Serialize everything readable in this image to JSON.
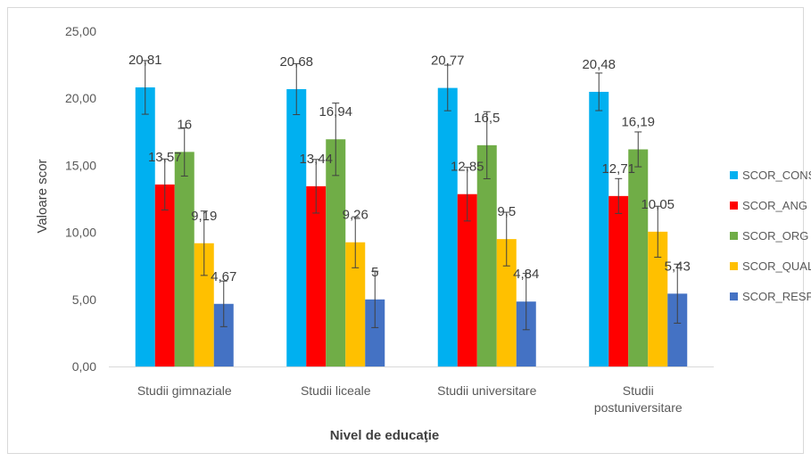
{
  "chart_data": {
    "type": "bar",
    "categories": [
      [
        "Studii gimnaziale"
      ],
      [
        "Studii liceale"
      ],
      [
        "Studii universitare"
      ],
      [
        "Studii",
        "postuniversitare"
      ]
    ],
    "series": [
      {
        "name": "SCOR_CONS",
        "color": "#00B0F0",
        "values": [
          20.81,
          20.68,
          20.77,
          20.48
        ],
        "labels": [
          "20,81",
          "20,68",
          "20,77",
          "20,48"
        ],
        "errors": [
          2.0,
          1.9,
          1.7,
          1.4
        ]
      },
      {
        "name": "SCOR_ANG",
        "color": "#FF0000",
        "values": [
          13.57,
          13.44,
          12.85,
          12.71
        ],
        "labels": [
          "13,57",
          "13,44",
          "12,85",
          "12,71"
        ],
        "errors": [
          1.9,
          2.0,
          2.0,
          1.3
        ]
      },
      {
        "name": "SCOR_ORG",
        "color": "#70AD47",
        "values": [
          16,
          16.94,
          16.5,
          16.19
        ],
        "labels": [
          "16",
          "16,94",
          "16,5",
          "16,19"
        ],
        "errors": [
          1.8,
          2.7,
          2.5,
          1.3
        ]
      },
      {
        "name": "SCOR_QUAL",
        "color": "#FFC000",
        "values": [
          9.19,
          9.26,
          9.5,
          10.05
        ],
        "labels": [
          "9,19",
          "9,26",
          "9,5",
          "10,05"
        ],
        "errors": [
          2.4,
          1.9,
          2.0,
          1.9
        ]
      },
      {
        "name": "SCOR_RESP",
        "color": "#4472C4",
        "values": [
          4.67,
          5,
          4.84,
          5.43
        ],
        "labels": [
          "4,67",
          "5",
          "4,84",
          "5,43"
        ],
        "errors": [
          1.7,
          2.1,
          2.1,
          2.2
        ]
      }
    ],
    "xlabel": "Nivel de educaţie",
    "ylabel": "Valoare scor",
    "ylim": [
      0,
      25
    ],
    "yticks": [
      "0,00",
      "5,00",
      "10,00",
      "15,00",
      "20,00",
      "25,00"
    ],
    "grid": false,
    "legend_position": "right"
  }
}
